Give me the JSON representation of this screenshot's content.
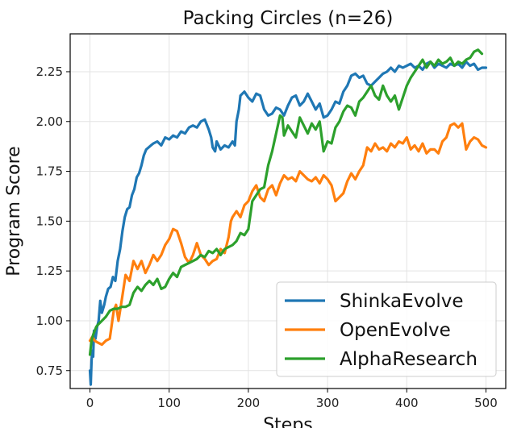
{
  "chart_data": {
    "type": "line",
    "title": "Packing Circles (n=26)",
    "xlabel": "Steps",
    "ylabel": "Program Score",
    "xlim": [
      -25,
      525
    ],
    "ylim": [
      0.66,
      2.44
    ],
    "xticks": [
      0,
      100,
      200,
      300,
      400,
      500
    ],
    "yticks": [
      0.75,
      1.0,
      1.25,
      1.5,
      1.75,
      2.0,
      2.25
    ],
    "ytick_labels": [
      "0.75",
      "1.00",
      "1.25",
      "1.50",
      "1.75",
      "2.00",
      "2.25"
    ],
    "xtick_labels": [
      "0",
      "100",
      "200",
      "300",
      "400",
      "500"
    ],
    "grid": true,
    "legend_position": "bottom-right",
    "series": [
      {
        "name": "ShinkaEvolve",
        "color": "#1f77b4",
        "x": [
          0,
          1,
          2,
          3,
          4,
          5,
          7,
          9,
          11,
          13,
          15,
          18,
          20,
          23,
          26,
          29,
          32,
          35,
          38,
          41,
          44,
          47,
          50,
          53,
          56,
          59,
          62,
          65,
          68,
          71,
          74,
          77,
          80,
          85,
          90,
          95,
          100,
          105,
          110,
          115,
          120,
          125,
          130,
          135,
          140,
          145,
          150,
          153,
          155,
          158,
          160,
          165,
          170,
          175,
          180,
          183,
          185,
          188,
          190,
          195,
          200,
          205,
          210,
          215,
          220,
          225,
          230,
          235,
          240,
          245,
          250,
          255,
          260,
          265,
          270,
          275,
          280,
          285,
          290,
          295,
          300,
          305,
          310,
          315,
          320,
          325,
          330,
          335,
          340,
          345,
          350,
          355,
          360,
          365,
          370,
          375,
          380,
          385,
          390,
          395,
          400,
          405,
          410,
          415,
          420,
          425,
          430,
          435,
          440,
          445,
          450,
          455,
          460,
          465,
          470,
          475,
          480,
          485,
          490,
          495,
          500
        ],
        "y": [
          0.75,
          0.68,
          0.8,
          0.85,
          0.82,
          0.95,
          0.91,
          0.97,
          1.0,
          1.1,
          1.04,
          1.08,
          1.12,
          1.16,
          1.17,
          1.22,
          1.2,
          1.3,
          1.36,
          1.45,
          1.52,
          1.56,
          1.57,
          1.63,
          1.66,
          1.72,
          1.74,
          1.78,
          1.83,
          1.86,
          1.87,
          1.88,
          1.89,
          1.9,
          1.88,
          1.92,
          1.91,
          1.93,
          1.92,
          1.95,
          1.94,
          1.97,
          1.98,
          1.97,
          2.0,
          2.01,
          1.96,
          1.92,
          1.87,
          1.85,
          1.9,
          1.86,
          1.88,
          1.87,
          1.9,
          1.88,
          2.0,
          2.06,
          2.13,
          2.15,
          2.12,
          2.1,
          2.14,
          2.13,
          2.06,
          2.03,
          2.04,
          2.07,
          2.06,
          2.03,
          2.08,
          2.12,
          2.13,
          2.08,
          2.1,
          2.14,
          2.1,
          2.06,
          2.09,
          2.02,
          2.03,
          2.06,
          2.1,
          2.09,
          2.15,
          2.18,
          2.23,
          2.24,
          2.22,
          2.23,
          2.19,
          2.18,
          2.2,
          2.22,
          2.24,
          2.25,
          2.27,
          2.25,
          2.28,
          2.27,
          2.28,
          2.29,
          2.27,
          2.28,
          2.26,
          2.29,
          2.3,
          2.27,
          2.29,
          2.28,
          2.27,
          2.29,
          2.28,
          2.29,
          2.27,
          2.3,
          2.28,
          2.29,
          2.26,
          2.27,
          2.27
        ]
      },
      {
        "name": "OpenEvolve",
        "color": "#ff7f0e",
        "x": [
          0,
          3,
          6,
          10,
          15,
          20,
          25,
          30,
          33,
          36,
          40,
          45,
          50,
          55,
          60,
          65,
          70,
          75,
          80,
          85,
          90,
          95,
          100,
          105,
          110,
          115,
          120,
          125,
          130,
          135,
          140,
          145,
          150,
          155,
          160,
          165,
          170,
          175,
          178,
          180,
          185,
          190,
          195,
          200,
          205,
          210,
          215,
          220,
          225,
          230,
          235,
          240,
          245,
          250,
          255,
          260,
          265,
          270,
          275,
          280,
          285,
          290,
          295,
          300,
          305,
          310,
          315,
          320,
          325,
          330,
          335,
          340,
          345,
          350,
          355,
          360,
          365,
          370,
          375,
          380,
          385,
          390,
          395,
          400,
          405,
          410,
          415,
          420,
          425,
          430,
          435,
          440,
          445,
          450,
          455,
          460,
          465,
          470,
          475,
          480,
          485,
          490,
          495,
          500
        ],
        "y": [
          0.9,
          0.92,
          0.9,
          0.89,
          0.88,
          0.9,
          0.91,
          1.05,
          1.08,
          1.0,
          1.1,
          1.23,
          1.2,
          1.3,
          1.26,
          1.3,
          1.24,
          1.28,
          1.33,
          1.3,
          1.33,
          1.38,
          1.41,
          1.46,
          1.45,
          1.39,
          1.32,
          1.29,
          1.33,
          1.39,
          1.33,
          1.31,
          1.28,
          1.3,
          1.31,
          1.36,
          1.34,
          1.42,
          1.5,
          1.52,
          1.55,
          1.52,
          1.58,
          1.6,
          1.65,
          1.68,
          1.62,
          1.6,
          1.66,
          1.68,
          1.63,
          1.69,
          1.73,
          1.71,
          1.72,
          1.7,
          1.75,
          1.73,
          1.71,
          1.7,
          1.72,
          1.69,
          1.73,
          1.71,
          1.68,
          1.6,
          1.62,
          1.64,
          1.7,
          1.74,
          1.71,
          1.75,
          1.78,
          1.87,
          1.85,
          1.89,
          1.86,
          1.87,
          1.85,
          1.89,
          1.87,
          1.9,
          1.89,
          1.92,
          1.86,
          1.88,
          1.85,
          1.89,
          1.84,
          1.86,
          1.86,
          1.84,
          1.9,
          1.92,
          1.98,
          1.99,
          1.97,
          1.99,
          1.86,
          1.9,
          1.92,
          1.91,
          1.88,
          1.87
        ]
      },
      {
        "name": "AlphaResearch",
        "color": "#2ca02c",
        "x": [
          0,
          2,
          4,
          6,
          8,
          10,
          15,
          20,
          25,
          30,
          35,
          40,
          45,
          50,
          55,
          60,
          65,
          70,
          75,
          80,
          85,
          90,
          95,
          100,
          105,
          110,
          115,
          120,
          125,
          130,
          135,
          140,
          145,
          150,
          155,
          160,
          165,
          170,
          175,
          180,
          185,
          190,
          195,
          200,
          205,
          210,
          215,
          220,
          225,
          230,
          235,
          240,
          243,
          245,
          250,
          255,
          260,
          265,
          270,
          275,
          280,
          285,
          290,
          295,
          300,
          305,
          310,
          315,
          320,
          325,
          330,
          335,
          340,
          345,
          350,
          355,
          360,
          365,
          370,
          375,
          380,
          385,
          390,
          395,
          400,
          405,
          410,
          415,
          420,
          425,
          430,
          435,
          440,
          445,
          450,
          455,
          460,
          465,
          470,
          475,
          480,
          485,
          490,
          495
        ],
        "y": [
          0.83,
          0.9,
          0.93,
          0.95,
          0.97,
          0.98,
          1.0,
          1.02,
          1.05,
          1.06,
          1.06,
          1.07,
          1.07,
          1.08,
          1.14,
          1.17,
          1.15,
          1.18,
          1.2,
          1.18,
          1.21,
          1.16,
          1.17,
          1.21,
          1.24,
          1.22,
          1.27,
          1.28,
          1.29,
          1.3,
          1.31,
          1.33,
          1.32,
          1.35,
          1.34,
          1.36,
          1.33,
          1.36,
          1.37,
          1.38,
          1.4,
          1.44,
          1.43,
          1.46,
          1.6,
          1.63,
          1.66,
          1.67,
          1.78,
          1.85,
          1.94,
          2.03,
          2.02,
          1.93,
          1.98,
          1.95,
          1.92,
          2.02,
          1.98,
          1.94,
          1.99,
          1.96,
          2.0,
          1.85,
          1.9,
          1.89,
          1.97,
          2.0,
          2.05,
          2.08,
          2.07,
          2.03,
          2.1,
          2.12,
          2.15,
          2.18,
          2.13,
          2.11,
          2.18,
          2.13,
          2.1,
          2.13,
          2.06,
          2.12,
          2.18,
          2.22,
          2.25,
          2.28,
          2.31,
          2.27,
          2.3,
          2.28,
          2.31,
          2.29,
          2.3,
          2.32,
          2.28,
          2.3,
          2.29,
          2.31,
          2.32,
          2.35,
          2.36,
          2.34
        ]
      }
    ]
  }
}
